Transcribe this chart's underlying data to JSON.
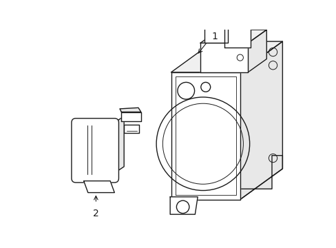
{
  "background_color": "#ffffff",
  "line_color": "#1a1a1a",
  "lw": 1.0,
  "label1": "1",
  "label2": "2"
}
